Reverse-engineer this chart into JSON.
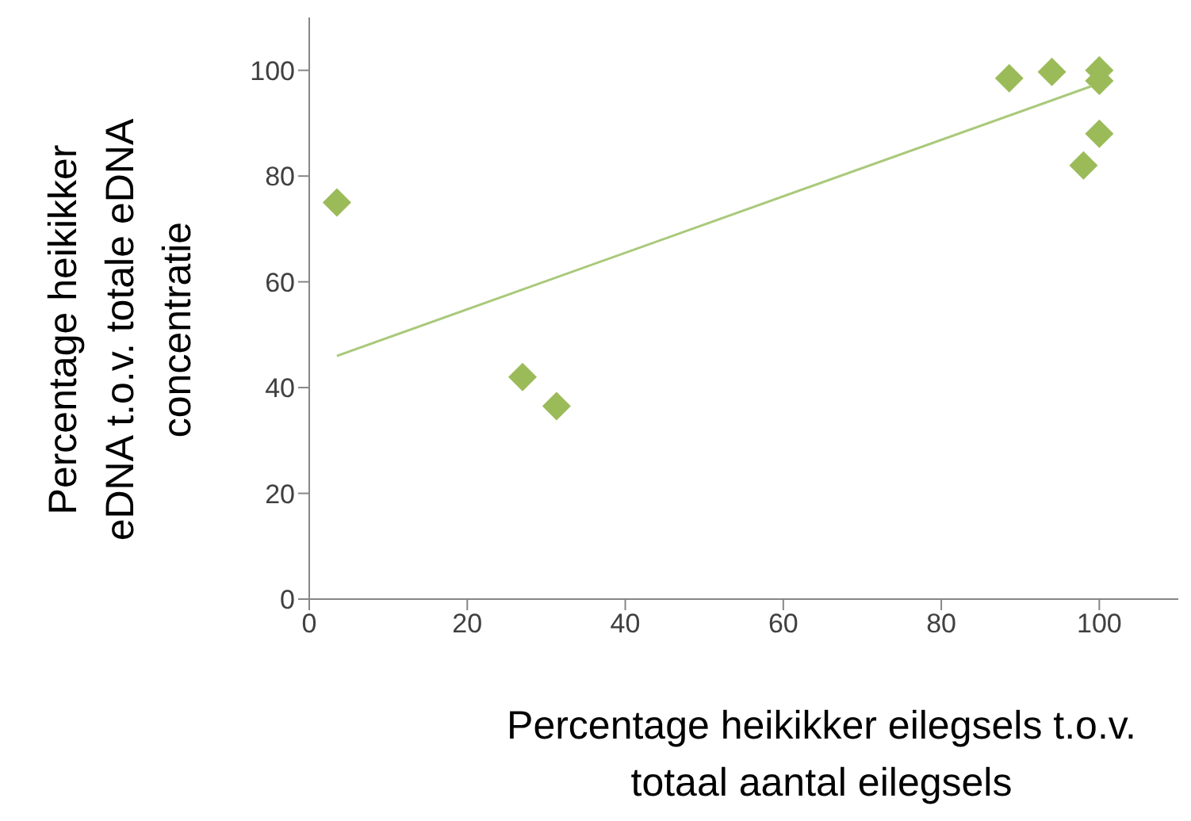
{
  "chart_data": {
    "type": "scatter",
    "xlabel": "Percentage heikikker eilegsels t.o.v. totaal aantal eilegsels",
    "ylabel": "Percentage heikikker eDNA t.o.v. totale eDNA concentratie",
    "marker": "diamond",
    "xlim": [
      0,
      110
    ],
    "xticks": [
      0,
      20,
      40,
      60,
      80,
      100
    ],
    "ylim": [
      0,
      110
    ],
    "yticks": [
      0,
      20,
      40,
      60,
      80,
      100
    ],
    "series": [
      {
        "color": "#9bbb59",
        "x": [
          3.5,
          27,
          31.3,
          88.6,
          94,
          100,
          100,
          100,
          98
        ],
        "values": [
          75,
          42,
          36.5,
          98.5,
          99.7,
          100,
          98,
          88,
          82
        ]
      },
      {
        "type": "line",
        "marker": "none",
        "color": "#a9c97a",
        "x": [
          3.5,
          99
        ],
        "values": [
          46,
          97
        ]
      }
    ]
  }
}
